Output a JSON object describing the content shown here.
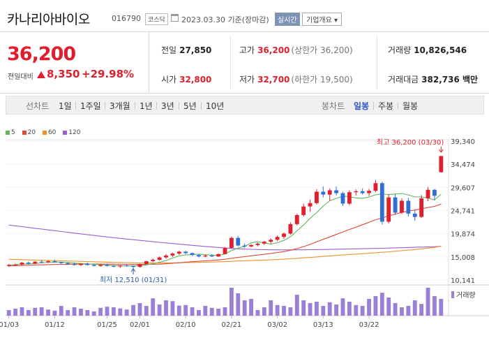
{
  "header": {
    "company_name": "카나리아바이오",
    "code": "016790",
    "market_badge": "코스닥",
    "date_info": "2023.03.30 기준(장마감)",
    "realtime_button": "실시간",
    "overview_dropdown": "기업개요 ▾"
  },
  "quote": {
    "price": "36,200",
    "change_label": "전일대비",
    "change": "8,350",
    "change_pct": "+29.98%",
    "prev_close_label": "전일",
    "prev_close": "27,850",
    "high_label": "고가",
    "high": "36,200",
    "high_sub": "(상한가 36,200)",
    "volume_label": "거래량",
    "volume": "10,826,546",
    "open_label": "시가",
    "open": "32,800",
    "low_label": "저가",
    "low": "32,700",
    "low_sub": "(하한가 19,500)",
    "amount_label": "거래대금",
    "amount": "382,736 백만"
  },
  "periods": {
    "left_label": "선차트",
    "items": [
      "1일",
      "1주일",
      "3개월",
      "1년",
      "3년",
      "5년",
      "10년"
    ],
    "right_label": "봉차트",
    "candle_items": [
      "일봉",
      "주봉",
      "월봉"
    ],
    "active_candle": "일봉"
  },
  "colors": {
    "up": "#e01e2d",
    "down": "#2f6fd6",
    "ma5": "#5cb85c",
    "ma20": "#e04a3a",
    "ma60": "#f0922b",
    "ma120": "#9a5ed1",
    "volume": "#9b7fd6"
  },
  "chart_data": {
    "type": "candlestick",
    "legend": [
      {
        "name": "5",
        "color": "#5cb85c"
      },
      {
        "name": "20",
        "color": "#e04a3a"
      },
      {
        "name": "60",
        "color": "#f0922b"
      },
      {
        "name": "120",
        "color": "#9a5ed1"
      }
    ],
    "y_ticks": [
      "39,340",
      "34,474",
      "29,607",
      "24,741",
      "19,874",
      "15,008",
      "10,141"
    ],
    "y_tick_values": [
      39340,
      34474,
      29607,
      24741,
      19874,
      15008,
      10141
    ],
    "ylim": [
      10141,
      39340
    ],
    "x_ticks": [
      "01/03",
      "01/12",
      "01/25",
      "02/01",
      "02/10",
      "02/21",
      "03/02",
      "03/13",
      "03/22"
    ],
    "x_tick_index": [
      0,
      7,
      15,
      20,
      27,
      34,
      41,
      48,
      55
    ],
    "high_annotation": "최고 36,200 (03/30)",
    "low_annotation": "최저 12,510 (01/31)",
    "volume_label": "거래량",
    "candles": [
      [
        13100,
        13500,
        12900,
        13300
      ],
      [
        13300,
        13600,
        13100,
        13400
      ],
      [
        13400,
        13900,
        13200,
        13800
      ],
      [
        13800,
        14000,
        13400,
        13600
      ],
      [
        13600,
        14100,
        13500,
        14000
      ],
      [
        14000,
        14300,
        13700,
        13900
      ],
      [
        13900,
        14300,
        13700,
        14100
      ],
      [
        14100,
        14400,
        13800,
        13900
      ],
      [
        13900,
        14000,
        13500,
        13700
      ],
      [
        13700,
        13900,
        13300,
        13500
      ],
      [
        13500,
        13800,
        13200,
        13300
      ],
      [
        13300,
        13700,
        13100,
        13600
      ],
      [
        13600,
        13800,
        13200,
        13300
      ],
      [
        13300,
        13500,
        13000,
        13100
      ],
      [
        13100,
        13400,
        12900,
        13300
      ],
      [
        13300,
        13600,
        13000,
        13100
      ],
      [
        13100,
        13300,
        12800,
        13000
      ],
      [
        13000,
        13300,
        12700,
        13200
      ],
      [
        13200,
        13500,
        12900,
        13100
      ],
      [
        13100,
        13200,
        12510,
        12900
      ],
      [
        12900,
        13600,
        12800,
        13500
      ],
      [
        13500,
        14200,
        13400,
        14100
      ],
      [
        14100,
        14700,
        13900,
        14400
      ],
      [
        14400,
        15100,
        14200,
        14900
      ],
      [
        14900,
        15600,
        14600,
        15300
      ],
      [
        15300,
        15900,
        15000,
        15700
      ],
      [
        15700,
        16300,
        15400,
        16100
      ],
      [
        16100,
        16300,
        15600,
        15800
      ],
      [
        15800,
        15900,
        15200,
        15400
      ],
      [
        15400,
        15600,
        14900,
        15100
      ],
      [
        15100,
        15500,
        14900,
        15300
      ],
      [
        15300,
        15600,
        15000,
        15100
      ],
      [
        15100,
        15700,
        15000,
        15600
      ],
      [
        15600,
        17100,
        15500,
        16900
      ],
      [
        16900,
        19300,
        16700,
        19000
      ],
      [
        19000,
        19400,
        17200,
        17400
      ],
      [
        17400,
        17800,
        16900,
        17200
      ],
      [
        17200,
        17700,
        17000,
        17500
      ],
      [
        17500,
        18000,
        17200,
        17800
      ],
      [
        17800,
        18400,
        17500,
        18200
      ],
      [
        18200,
        18900,
        17800,
        18600
      ],
      [
        18600,
        19500,
        18300,
        19200
      ],
      [
        19200,
        20100,
        18800,
        19900
      ],
      [
        19900,
        22300,
        19700,
        21900
      ],
      [
        21900,
        24100,
        21600,
        23800
      ],
      [
        23800,
        26200,
        23500,
        25600
      ],
      [
        25600,
        27000,
        24500,
        26300
      ],
      [
        26300,
        29200,
        26000,
        28700
      ],
      [
        28700,
        29800,
        27500,
        28100
      ],
      [
        28100,
        29400,
        26800,
        29000
      ],
      [
        29000,
        29800,
        27900,
        28400
      ],
      [
        28400,
        28700,
        25700,
        26200
      ],
      [
        26200,
        29000,
        25900,
        28600
      ],
      [
        28600,
        29200,
        27900,
        28800
      ],
      [
        28800,
        29400,
        28100,
        28400
      ],
      [
        28400,
        29300,
        27800,
        28900
      ],
      [
        28900,
        31200,
        28600,
        30500
      ],
      [
        30500,
        30800,
        21800,
        22400
      ],
      [
        22400,
        28200,
        22000,
        27500
      ],
      [
        27500,
        28200,
        23800,
        24300
      ],
      [
        24300,
        27300,
        24000,
        26800
      ],
      [
        26800,
        27400,
        23500,
        24100
      ],
      [
        24100,
        24800,
        22600,
        23400
      ],
      [
        23400,
        28000,
        23200,
        27300
      ],
      [
        27300,
        29700,
        26700,
        29100
      ],
      [
        29100,
        29300,
        26900,
        27850
      ],
      [
        32800,
        36200,
        32700,
        36200
      ]
    ],
    "ma5": [
      13300,
      13350,
      13500,
      13520,
      13620,
      13740,
      13880,
      13900,
      13920,
      13820,
      13700,
      13610,
      13540,
      13440,
      13360,
      13280,
      13200,
      13140,
      13120,
      13100,
      13140,
      13340,
      13580,
      13880,
      14240,
      14780,
      15220,
      15440,
      15480,
      15580,
      15500,
      15360,
      15300,
      15640,
      16340,
      16860,
      17220,
      17960,
      18180,
      17940,
      17700,
      17980,
      18480,
      19240,
      20480,
      21700,
      23100,
      24300,
      25700,
      26800,
      27300,
      27780,
      27660,
      27400,
      27300,
      27580,
      28060,
      28260,
      28100,
      28220,
      28340,
      28020,
      27600,
      27600,
      27400,
      26980,
      28200
    ],
    "ma20": [
      13100,
      13150,
      13200,
      13250,
      13300,
      13340,
      13380,
      13420,
      13440,
      13460,
      13480,
      13490,
      13500,
      13500,
      13500,
      13490,
      13480,
      13470,
      13460,
      13430,
      13420,
      13430,
      13450,
      13490,
      13560,
      13660,
      13780,
      13900,
      14000,
      14090,
      14170,
      14260,
      14370,
      14520,
      14720,
      14900,
      15060,
      15230,
      15400,
      15560,
      15730,
      15920,
      16120,
      16400,
      16760,
      17170,
      17620,
      18160,
      18700,
      19200,
      19720,
      20250,
      20760,
      21250,
      21760,
      22280,
      22840,
      23190,
      23630,
      24000,
      24350,
      24640,
      24860,
      25090,
      25390,
      25600,
      26100
    ],
    "ma60": [
      14500,
      14460,
      14420,
      14380,
      14340,
      14300,
      14260,
      14220,
      14180,
      14140,
      14100,
      14060,
      14020,
      13980,
      13940,
      13900,
      13860,
      13820,
      13790,
      13760,
      13740,
      13730,
      13720,
      13720,
      13730,
      13750,
      13780,
      13810,
      13840,
      13870,
      13900,
      13930,
      13970,
      14020,
      14080,
      14140,
      14190,
      14240,
      14290,
      14340,
      14400,
      14460,
      14530,
      14610,
      14700,
      14800,
      14900,
      15000,
      15110,
      15220,
      15320,
      15410,
      15490,
      15580,
      15670,
      15770,
      15880,
      15980,
      16080,
      16190,
      16310,
      16430,
      16560,
      16700,
      16850,
      17000,
      17300
    ],
    "ma120": [
      21700,
      21530,
      21360,
      21190,
      21020,
      20850,
      20680,
      20510,
      20340,
      20170,
      20000,
      19840,
      19680,
      19520,
      19360,
      19200,
      19050,
      18900,
      18760,
      18620,
      18480,
      18340,
      18200,
      18070,
      17940,
      17810,
      17680,
      17560,
      17440,
      17320,
      17200,
      17090,
      16980,
      16880,
      16790,
      16700,
      16640,
      16590,
      16550,
      16520,
      16500,
      16490,
      16480,
      16480,
      16490,
      16500,
      16520,
      16540,
      16560,
      16580,
      16610,
      16640,
      16670,
      16700,
      16730,
      16760,
      16790,
      16820,
      16860,
      16900,
      16940,
      16980,
      17020,
      17060,
      17100,
      17140,
      17250
    ],
    "volume": [
      0.2,
      0.25,
      0.3,
      0.2,
      0.28,
      0.3,
      0.22,
      0.18,
      0.35,
      0.2,
      0.3,
      0.25,
      0.2,
      0.15,
      0.28,
      0.32,
      0.3,
      0.26,
      0.22,
      0.38,
      0.45,
      0.35,
      0.62,
      0.4,
      0.55,
      0.52,
      0.36,
      0.38,
      0.3,
      0.2,
      0.35,
      0.28,
      0.25,
      0.3,
      1.0,
      0.8,
      0.55,
      0.6,
      0.2,
      0.3,
      0.55,
      0.38,
      0.35,
      0.3,
      0.75,
      0.55,
      0.45,
      0.5,
      0.35,
      0.48,
      0.4,
      0.62,
      0.5,
      0.38,
      0.35,
      0.6,
      0.7,
      0.82,
      0.65,
      0.45,
      0.3,
      0.35,
      0.55,
      0.42,
      1.0,
      0.7,
      0.6
    ]
  }
}
